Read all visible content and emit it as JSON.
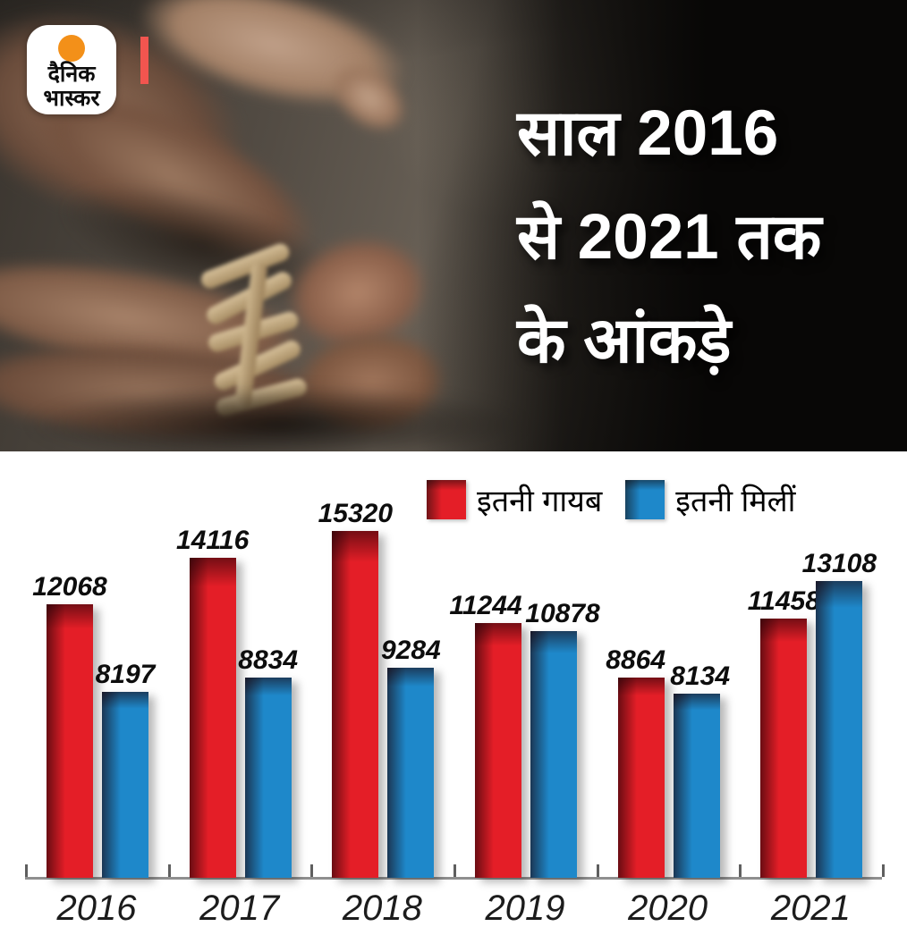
{
  "brand": {
    "logo_line1": "दैनिक",
    "logo_line2": "भास्कर"
  },
  "hero": {
    "title_lines": [
      "साल 2016",
      "से 2021 तक",
      "के आंकड़े"
    ]
  },
  "colors": {
    "missing_red": "#e41e27",
    "found_blue": "#1e88ca",
    "accent_red": "#f2554f",
    "logo_orange": "#f39019"
  },
  "chart_data": {
    "type": "bar",
    "title": "साल 2016 से 2021 तक के आंकड़े",
    "categories": [
      "2016",
      "2017",
      "2018",
      "2019",
      "2020",
      "2021"
    ],
    "series": [
      {
        "name": "इतनी गायब",
        "color": "#e41e27",
        "values": [
          12068,
          14116,
          15320,
          11244,
          8864,
          11458
        ]
      },
      {
        "name": "इतनी मिलीं",
        "color": "#1e88ca",
        "values": [
          8197,
          8834,
          9284,
          10878,
          8134,
          13108
        ]
      }
    ],
    "xlabel": "",
    "ylabel": "",
    "ylim": [
      0,
      15500
    ],
    "grid": false,
    "legend_position": "top-right",
    "value_labels": true
  }
}
